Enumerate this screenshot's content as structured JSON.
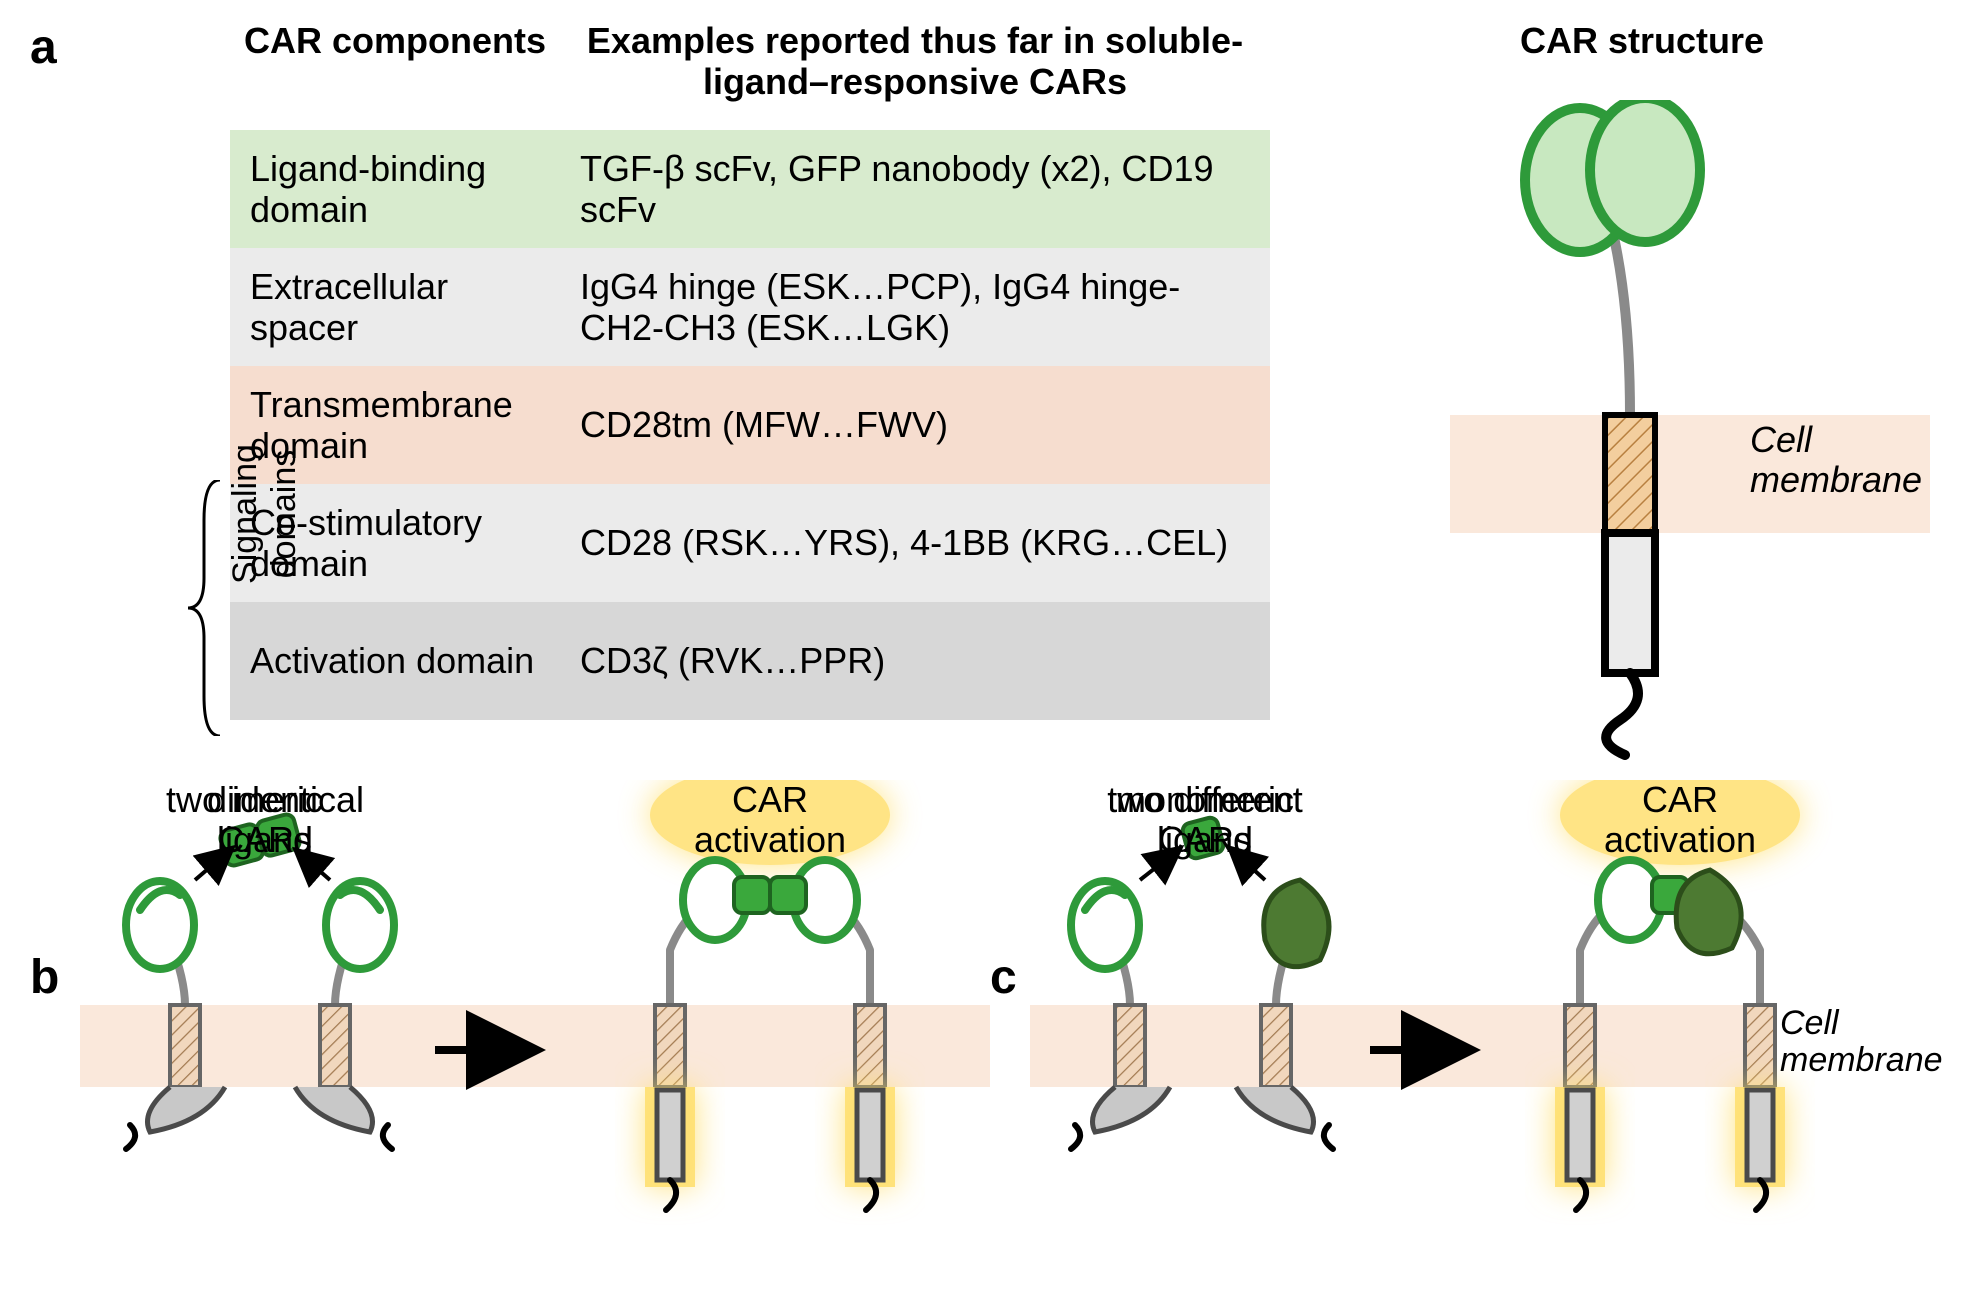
{
  "letters": {
    "a": "a",
    "b": "b",
    "c": "c"
  },
  "headers": {
    "components": "CAR components",
    "examples": "Examples reported thus far in soluble-ligand–responsive CARs",
    "structure": "CAR structure"
  },
  "rows": [
    {
      "name": "Ligand-binding domain",
      "examples": "TGF-β scFv, GFP nanobody (x2), CD19 scFv",
      "bg": "#d8ebce"
    },
    {
      "name": "Extracellular spacer",
      "examples": "IgG4 hinge (ESK…PCP), IgG4 hinge-CH2-CH3 (ESK…LGK)",
      "bg": "#ebebeb"
    },
    {
      "name": "Transmembrane domain",
      "examples": "CD28tm (MFW…FWV)",
      "bg": "#f6ddcf"
    },
    {
      "name": "Co-stimulatory domain",
      "examples": "CD28 (RSK…YRS), 4-1BB (KRG…CEL)",
      "bg": "#ebebeb"
    },
    {
      "name": "Activation domain",
      "examples": "CD3ζ (RVK…PPR)",
      "bg": "#d7d7d7"
    }
  ],
  "rotated_label": "Signaling domains",
  "cell_membrane": "Cell membrane",
  "panel_b": {
    "top_label": "dimeric ligand",
    "bottom_label": "two identical CARs",
    "activation": "CAR activation"
  },
  "panel_c": {
    "top_label": "monomeric ligand",
    "bottom_label": "two different CARs",
    "activation": "CAR activation"
  },
  "colors": {
    "green_stroke": "#2e9a3a",
    "green_fill": "#c8e8c0",
    "dark_green": "#3d6b2b",
    "membrane_fill": "#fae8db",
    "tm_fill": "#f3ce9e",
    "glow": "#ffe070",
    "grey": "#8a8a8a",
    "black": "#000000",
    "panel_grey": "#c8c8c8"
  }
}
